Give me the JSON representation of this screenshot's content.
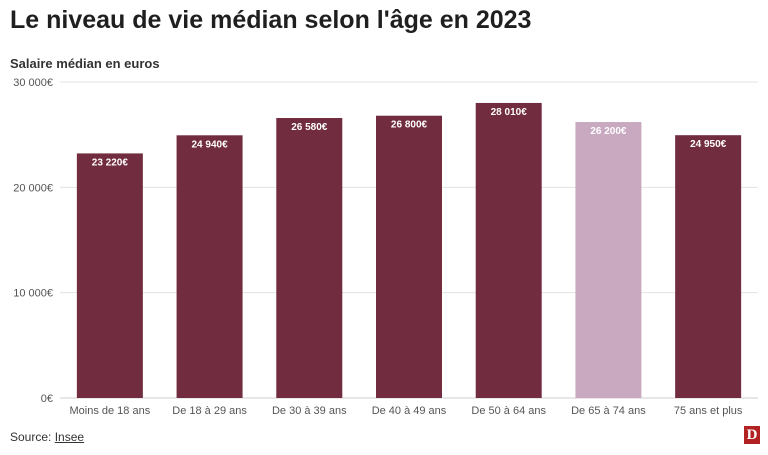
{
  "header": {
    "title": "Le niveau de vie médian selon l'âge en 2023",
    "subtitle": "Salaire médian en euros"
  },
  "footer": {
    "source_label": "Source: ",
    "source_link": "Insee",
    "logo_letter": "D"
  },
  "colors": {
    "bar": "#722c3f",
    "bar_highlight": "#c8a9c0",
    "grid": "#e3e3e3",
    "axis_text": "#555555",
    "label_text": "#ffffff"
  },
  "chart_data": {
    "type": "bar",
    "title": "Le niveau de vie médian selon l'âge en 2023",
    "ylabel": "Salaire médian en euros",
    "categories": [
      "Moins de 18 ans",
      "De 18 à 29 ans",
      "De 30 à 39 ans",
      "De 40 à 49 ans",
      "De 50 à 64 ans",
      "De 65 à 74 ans",
      "75 ans et plus"
    ],
    "values": [
      23220,
      24940,
      26580,
      26800,
      28010,
      26200,
      24950
    ],
    "value_labels": [
      "23 220€",
      "24 940€",
      "26 580€",
      "26 800€",
      "28 010€",
      "26 200€",
      "24 950€"
    ],
    "highlight_index": 5,
    "ylim": [
      0,
      30000
    ],
    "yticks": [
      0,
      10000,
      20000,
      30000
    ],
    "ytick_labels": [
      "0€",
      "10 000€",
      "20 000€",
      "30 000€"
    ],
    "grid": true
  }
}
